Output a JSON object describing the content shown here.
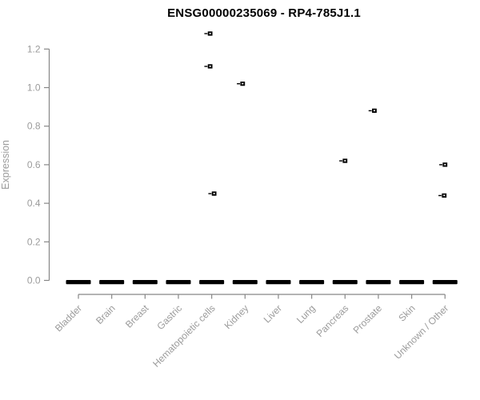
{
  "chart_data": {
    "type": "scatter",
    "title": "ENSG00000235069 - RP4-785J1.1",
    "ylabel": "Expression",
    "xlabel": "",
    "ylim": [
      0.0,
      1.2
    ],
    "yticks": [
      0.0,
      0.2,
      0.4,
      0.6,
      0.8,
      1.0,
      1.2
    ],
    "grid": false,
    "legend": "none",
    "categories": [
      "Bladder",
      "Brain",
      "Breast",
      "Gastric",
      "Hematopoietic cells",
      "Kidney",
      "Liver",
      "Lung",
      "Pancreas",
      "Prostate",
      "Skin",
      "Unknown / Other"
    ],
    "baseline_value": 0.0,
    "baseline_bar_categories": "all",
    "points": [
      {
        "category": "Hematopoietic cells",
        "value": 1.28,
        "dx": -2
      },
      {
        "category": "Hematopoietic cells",
        "value": 1.11,
        "dx": -2
      },
      {
        "category": "Hematopoietic cells",
        "value": 0.45,
        "dx": 3
      },
      {
        "category": "Kidney",
        "value": 1.02,
        "dx": -3
      },
      {
        "category": "Pancreas",
        "value": 0.62,
        "dx": 0
      },
      {
        "category": "Prostate",
        "value": 0.88,
        "dx": -5
      },
      {
        "category": "Unknown / Other",
        "value": 0.6,
        "dx": 0
      },
      {
        "category": "Unknown / Other",
        "value": 0.44,
        "dx": -1
      }
    ],
    "colors": {
      "points": "#000000",
      "baseline_bar": "#000000",
      "axis": "#878787",
      "labels": "#9b9b9b",
      "title": "#000000",
      "background": "#ffffff"
    }
  }
}
